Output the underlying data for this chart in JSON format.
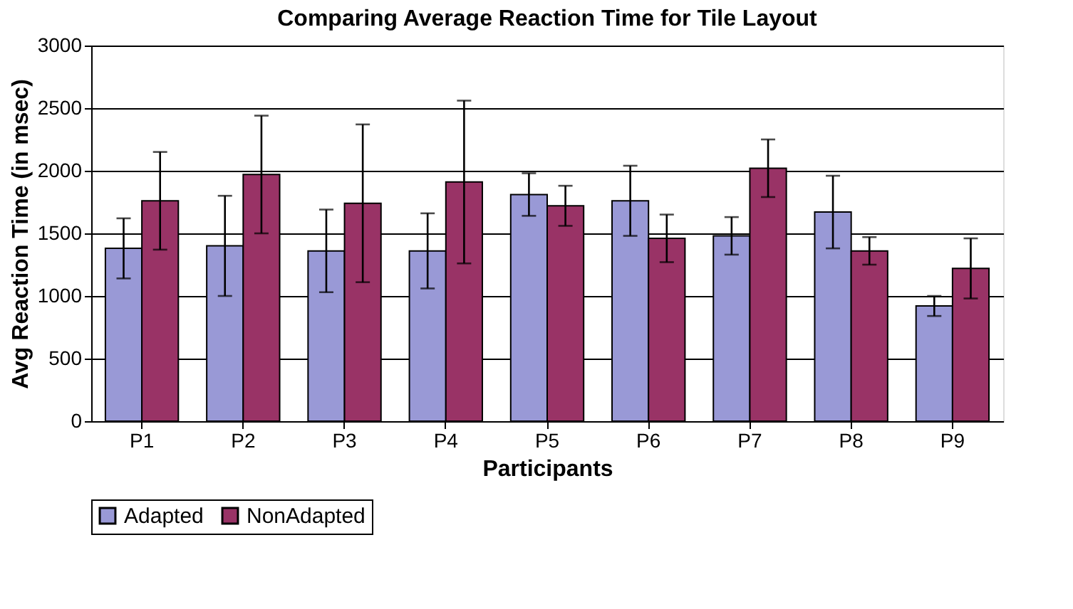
{
  "chart_data": {
    "type": "bar",
    "title": "Comparing Average Reaction Time for Tile Layout",
    "xlabel": "Participants",
    "ylabel": "Avg Reaction Time (in msec)",
    "categories": [
      "P1",
      "P2",
      "P3",
      "P4",
      "P5",
      "P6",
      "P7",
      "P8",
      "P9"
    ],
    "series": [
      {
        "name": "Adapted",
        "color": "#9999d6",
        "values": [
          1380,
          1400,
          1360,
          1360,
          1810,
          1760,
          1480,
          1670,
          920
        ],
        "errors": [
          240,
          400,
          330,
          300,
          170,
          280,
          150,
          290,
          80
        ]
      },
      {
        "name": "NonAdapted",
        "color": "#993366",
        "values": [
          1760,
          1970,
          1740,
          1910,
          1720,
          1460,
          2020,
          1360,
          1220
        ],
        "errors": [
          390,
          470,
          630,
          650,
          160,
          190,
          230,
          110,
          240
        ]
      }
    ],
    "ylim": [
      0,
      3000
    ],
    "yticks": [
      0,
      500,
      1000,
      1500,
      2000,
      2500,
      3000
    ],
    "grid": "y",
    "legend": "bottom"
  }
}
